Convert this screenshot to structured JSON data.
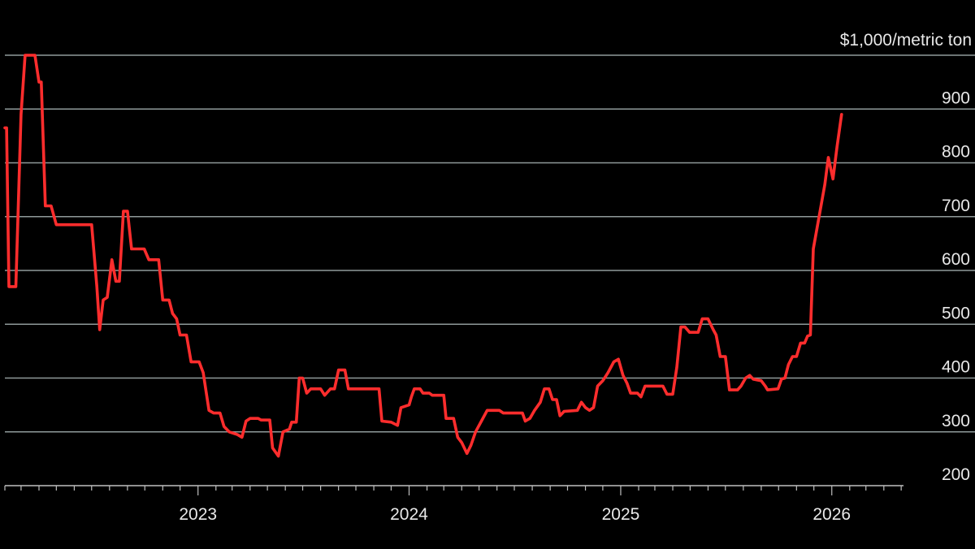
{
  "chart_data": {
    "type": "line",
    "title": "",
    "unit_label": "$1,000/metric ton",
    "xlabel": "",
    "ylabel": "",
    "x_range": [
      "2022-02-01",
      "2026-05-05"
    ],
    "ylim": [
      200,
      1000
    ],
    "y_ticks": [
      200,
      300,
      400,
      500,
      600,
      700,
      800,
      900
    ],
    "x_ticks": [
      {
        "date": "2023-01-01",
        "label": "2023"
      },
      {
        "date": "2024-01-01",
        "label": "2024"
      },
      {
        "date": "2025-01-01",
        "label": "2025"
      },
      {
        "date": "2026-01-01",
        "label": "2026"
      }
    ],
    "grid": true,
    "legend": "none",
    "line_color": "#ff2d2d",
    "series": [
      {
        "points": [
          [
            "2022-02-01",
            865
          ],
          [
            "2022-02-04",
            865
          ],
          [
            "2022-02-08",
            570
          ],
          [
            "2022-02-20",
            570
          ],
          [
            "2022-03-01",
            890
          ],
          [
            "2022-03-08",
            1000
          ],
          [
            "2022-03-25",
            1000
          ],
          [
            "2022-04-01",
            950
          ],
          [
            "2022-04-05",
            950
          ],
          [
            "2022-04-12",
            720
          ],
          [
            "2022-04-22",
            720
          ],
          [
            "2022-05-01",
            685
          ],
          [
            "2022-07-01",
            685
          ],
          [
            "2022-07-10",
            570
          ],
          [
            "2022-07-15",
            490
          ],
          [
            "2022-07-21",
            545
          ],
          [
            "2022-07-28",
            550
          ],
          [
            "2022-08-05",
            620
          ],
          [
            "2022-08-12",
            580
          ],
          [
            "2022-08-18",
            580
          ],
          [
            "2022-08-25",
            710
          ],
          [
            "2022-09-01",
            710
          ],
          [
            "2022-09-08",
            640
          ],
          [
            "2022-09-30",
            640
          ],
          [
            "2022-10-08",
            620
          ],
          [
            "2022-10-25",
            620
          ],
          [
            "2022-11-01",
            545
          ],
          [
            "2022-11-12",
            545
          ],
          [
            "2022-11-18",
            520
          ],
          [
            "2022-11-25",
            510
          ],
          [
            "2022-12-01",
            480
          ],
          [
            "2022-12-12",
            480
          ],
          [
            "2022-12-20",
            430
          ],
          [
            "2023-01-03",
            430
          ],
          [
            "2023-01-10",
            410
          ],
          [
            "2023-01-20",
            340
          ],
          [
            "2023-01-28",
            335
          ],
          [
            "2023-02-08",
            335
          ],
          [
            "2023-02-15",
            310
          ],
          [
            "2023-02-24",
            300
          ],
          [
            "2023-03-10",
            295
          ],
          [
            "2023-03-18",
            290
          ],
          [
            "2023-03-25",
            320
          ],
          [
            "2023-04-01",
            325
          ],
          [
            "2023-04-15",
            325
          ],
          [
            "2023-04-20",
            322
          ],
          [
            "2023-05-05",
            322
          ],
          [
            "2023-05-10",
            270
          ],
          [
            "2023-05-20",
            255
          ],
          [
            "2023-05-28",
            300
          ],
          [
            "2023-06-08",
            305
          ],
          [
            "2023-06-12",
            318
          ],
          [
            "2023-06-20",
            318
          ],
          [
            "2023-06-25",
            400
          ],
          [
            "2023-07-01",
            400
          ],
          [
            "2023-07-08",
            372
          ],
          [
            "2023-07-15",
            380
          ],
          [
            "2023-08-01",
            380
          ],
          [
            "2023-08-08",
            368
          ],
          [
            "2023-08-18",
            380
          ],
          [
            "2023-08-25",
            380
          ],
          [
            "2023-09-01",
            415
          ],
          [
            "2023-09-12",
            415
          ],
          [
            "2023-09-18",
            380
          ],
          [
            "2023-11-10",
            380
          ],
          [
            "2023-11-15",
            320
          ],
          [
            "2023-12-01",
            318
          ],
          [
            "2023-12-12",
            312
          ],
          [
            "2023-12-18",
            345
          ],
          [
            "2024-01-01",
            350
          ],
          [
            "2024-01-05",
            365
          ],
          [
            "2024-01-10",
            380
          ],
          [
            "2024-01-20",
            380
          ],
          [
            "2024-01-25",
            372
          ],
          [
            "2024-02-05",
            372
          ],
          [
            "2024-02-10",
            368
          ],
          [
            "2024-03-01",
            368
          ],
          [
            "2024-03-05",
            325
          ],
          [
            "2024-03-18",
            325
          ],
          [
            "2024-03-25",
            290
          ],
          [
            "2024-04-01",
            280
          ],
          [
            "2024-04-10",
            260
          ],
          [
            "2024-04-17",
            275
          ],
          [
            "2024-04-25",
            300
          ],
          [
            "2024-05-05",
            320
          ],
          [
            "2024-05-15",
            340
          ],
          [
            "2024-06-05",
            340
          ],
          [
            "2024-06-12",
            335
          ],
          [
            "2024-07-15",
            335
          ],
          [
            "2024-07-20",
            320
          ],
          [
            "2024-07-28",
            325
          ],
          [
            "2024-08-05",
            340
          ],
          [
            "2024-08-15",
            355
          ],
          [
            "2024-08-22",
            380
          ],
          [
            "2024-08-30",
            380
          ],
          [
            "2024-09-05",
            360
          ],
          [
            "2024-09-12",
            360
          ],
          [
            "2024-09-18",
            330
          ],
          [
            "2024-09-25",
            338
          ],
          [
            "2024-10-18",
            340
          ],
          [
            "2024-10-25",
            355
          ],
          [
            "2024-11-01",
            345
          ],
          [
            "2024-11-08",
            340
          ],
          [
            "2024-11-15",
            345
          ],
          [
            "2024-11-22",
            385
          ],
          [
            "2024-12-01",
            395
          ],
          [
            "2024-12-10",
            410
          ],
          [
            "2024-12-20",
            430
          ],
          [
            "2024-12-28",
            435
          ],
          [
            "2025-01-05",
            405
          ],
          [
            "2025-01-12",
            390
          ],
          [
            "2025-01-18",
            372
          ],
          [
            "2025-01-30",
            372
          ],
          [
            "2025-02-05",
            365
          ],
          [
            "2025-02-12",
            385
          ],
          [
            "2025-03-15",
            385
          ],
          [
            "2025-03-22",
            370
          ],
          [
            "2025-04-01",
            370
          ],
          [
            "2025-04-08",
            420
          ],
          [
            "2025-04-15",
            495
          ],
          [
            "2025-04-22",
            495
          ],
          [
            "2025-04-30",
            485
          ],
          [
            "2025-05-15",
            485
          ],
          [
            "2025-05-22",
            510
          ],
          [
            "2025-06-01",
            510
          ],
          [
            "2025-06-10",
            490
          ],
          [
            "2025-06-15",
            480
          ],
          [
            "2025-06-22",
            440
          ],
          [
            "2025-07-01",
            440
          ],
          [
            "2025-07-08",
            378
          ],
          [
            "2025-07-22",
            378
          ],
          [
            "2025-07-28",
            385
          ],
          [
            "2025-08-05",
            400
          ],
          [
            "2025-08-12",
            405
          ],
          [
            "2025-08-18",
            398
          ],
          [
            "2025-09-01",
            395
          ],
          [
            "2025-09-08",
            385
          ],
          [
            "2025-09-12",
            378
          ],
          [
            "2025-09-30",
            380
          ],
          [
            "2025-10-06",
            398
          ],
          [
            "2025-10-12",
            400
          ],
          [
            "2025-10-18",
            425
          ],
          [
            "2025-10-25",
            440
          ],
          [
            "2025-11-01",
            440
          ],
          [
            "2025-11-08",
            465
          ],
          [
            "2025-11-15",
            465
          ],
          [
            "2025-11-20",
            478
          ],
          [
            "2025-11-25",
            480
          ],
          [
            "2025-11-30",
            640
          ],
          [
            "2025-12-10",
            700
          ],
          [
            "2025-12-20",
            760
          ],
          [
            "2025-12-26",
            810
          ],
          [
            "2026-01-03",
            770
          ],
          [
            "2026-01-10",
            830
          ],
          [
            "2026-01-18",
            890
          ]
        ]
      }
    ]
  }
}
